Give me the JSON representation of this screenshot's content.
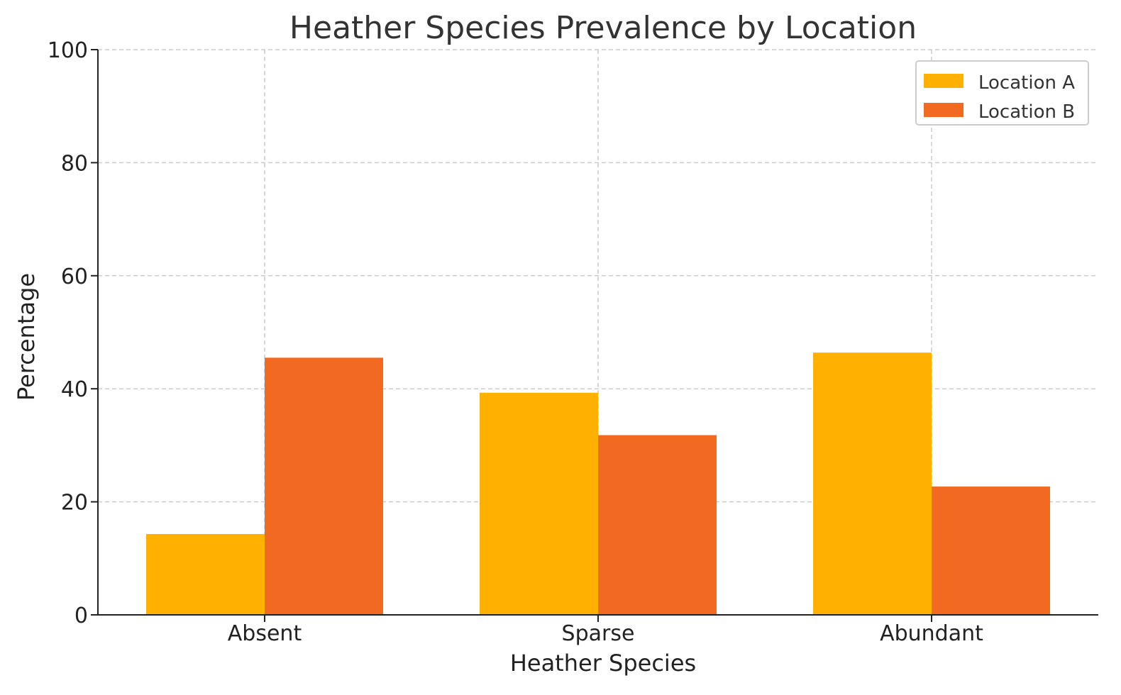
{
  "chart_data": {
    "type": "bar",
    "title": "Heather Species Prevalence by Location",
    "xlabel": "Heather Species",
    "ylabel": "Percentage",
    "categories": [
      "Absent",
      "Sparse",
      "Abundant"
    ],
    "series": [
      {
        "name": "Location A",
        "color": "#FFB000",
        "values": [
          14.3,
          39.3,
          46.4
        ]
      },
      {
        "name": "Location B",
        "color": "#F26A21",
        "values": [
          45.5,
          31.8,
          22.7
        ]
      }
    ],
    "ylim": [
      0,
      100
    ],
    "yticks": [
      0,
      20,
      40,
      60,
      80,
      100
    ],
    "grid": true,
    "legend_position": "top-right"
  }
}
